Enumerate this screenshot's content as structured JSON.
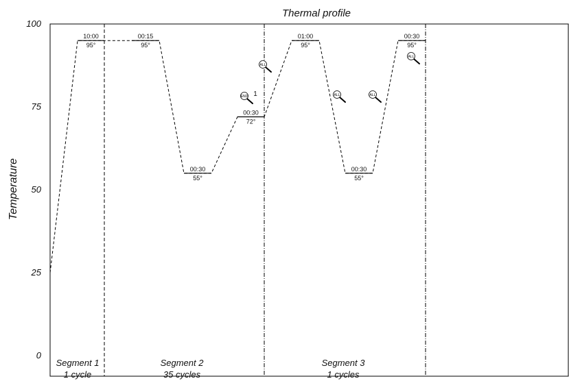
{
  "chart_data": {
    "type": "line",
    "title": "Thermal profile",
    "ylabel": "Temperature",
    "xlabel": "",
    "ylim": [
      0,
      100
    ],
    "yticks": [
      0,
      25,
      50,
      75,
      100
    ],
    "grid": false,
    "profile_points": [
      {
        "x": 0,
        "y": 25
      },
      {
        "x": 1,
        "y": 95
      },
      {
        "x": 2,
        "y": 95
      },
      {
        "x": 3,
        "y": 95
      },
      {
        "x": 4,
        "y": 95
      },
      {
        "x": 5,
        "y": 55
      },
      {
        "x": 6,
        "y": 55
      },
      {
        "x": 7,
        "y": 72
      },
      {
        "x": 8,
        "y": 72
      },
      {
        "x": 9,
        "y": 95
      },
      {
        "x": 10,
        "y": 95
      },
      {
        "x": 11,
        "y": 55
      },
      {
        "x": 12,
        "y": 55
      },
      {
        "x": 13,
        "y": 95
      },
      {
        "x": 14,
        "y": 95
      }
    ],
    "steps": [
      {
        "time": "10:00",
        "temp": "95°",
        "y": 95,
        "x_start": 1,
        "x_end": 2
      },
      {
        "time": "00:15",
        "temp": "95°",
        "y": 95,
        "x_start": 3,
        "x_end": 4
      },
      {
        "time": "00:30",
        "temp": "55°",
        "y": 55,
        "x_start": 5,
        "x_end": 6
      },
      {
        "time": "00:30",
        "temp": "72°",
        "y": 72,
        "x_start": 7,
        "x_end": 8
      },
      {
        "time": "01:00",
        "temp": "95°",
        "y": 95,
        "x_start": 9,
        "x_end": 10
      },
      {
        "time": "00:30",
        "temp": "55°",
        "y": 55,
        "x_start": 11,
        "x_end": 12
      },
      {
        "time": "00:30",
        "temp": "95°",
        "y": 95,
        "x_start": 13,
        "x_end": 14
      }
    ],
    "segments": [
      {
        "name": "Segment 1",
        "cycles": "1 cycle"
      },
      {
        "name": "Segment 2",
        "cycles": "35 cycles"
      },
      {
        "name": "Segment 3",
        "cycles": "1 cycles"
      }
    ],
    "icons": [
      {
        "kind": "magnifier-icon",
        "text": "END",
        "marker": "1"
      },
      {
        "kind": "magnifier-icon",
        "text": "ALL",
        "marker": ""
      },
      {
        "kind": "magnifier-icon",
        "text": "ALL",
        "marker": ""
      },
      {
        "kind": "magnifier-icon",
        "text": "ALL",
        "marker": ""
      },
      {
        "kind": "magnifier-icon",
        "text": "ALL",
        "marker": ""
      }
    ]
  }
}
